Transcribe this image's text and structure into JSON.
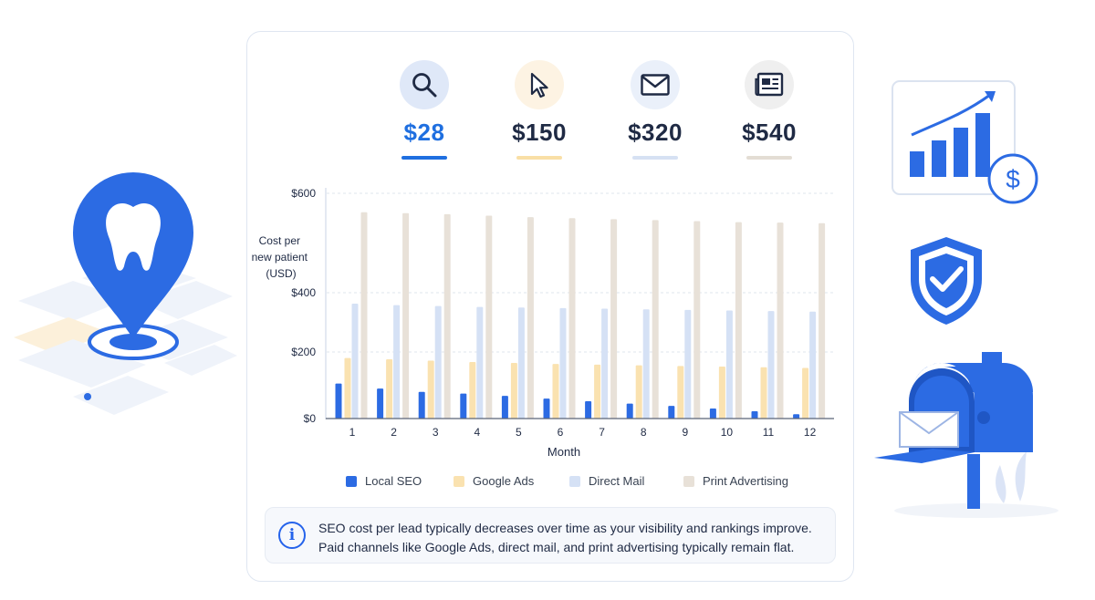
{
  "kpis": [
    {
      "label": "$28",
      "icon": "search-icon",
      "circle_color": "#dfe8f8",
      "value_color": "#1f6fe0",
      "bar_color": "#1f6fe0"
    },
    {
      "label": "$150",
      "icon": "cursor-icon",
      "circle_color": "#fdf3e3",
      "value_color": "#1f2a44",
      "bar_color": "#f9dfa6"
    },
    {
      "label": "$320",
      "icon": "mail-icon",
      "circle_color": "#eaf0fa",
      "value_color": "#1f2a44",
      "bar_color": "#d6e1f3"
    },
    {
      "label": "$540",
      "icon": "newspaper-icon",
      "circle_color": "#efefef",
      "value_color": "#1f2a44",
      "bar_color": "#e3ddd4"
    }
  ],
  "chart_data": {
    "type": "bar",
    "ylabel": "Cost per new patient (USD)",
    "xlabel": "Month",
    "y_tick_labels": [
      "$0",
      "$200",
      "$400",
      "$600"
    ],
    "categories": [
      "1",
      "2",
      "3",
      "4",
      "5",
      "6",
      "7",
      "8",
      "9",
      "10",
      "11",
      "12"
    ],
    "series": [
      {
        "name": "Local SEO",
        "color": "#2c6be3",
        "values": [
          105,
          90,
          80,
          75,
          68,
          60,
          52,
          45,
          38,
          30,
          22,
          13
        ]
      },
      {
        "name": "Google Ads",
        "color": "#fae2b0",
        "values": [
          182,
          178,
          174,
          170,
          167,
          164,
          162,
          160,
          158,
          156,
          154,
          152
        ]
      },
      {
        "name": "Direct Mail",
        "color": "#d5e1f5",
        "values": [
          363,
          358,
          355,
          352,
          350,
          348,
          346,
          344,
          342,
          340,
          338,
          336
        ]
      },
      {
        "name": "Print Advertising",
        "color": "#e8e1d8",
        "values": [
          562,
          560,
          558,
          555,
          552,
          550,
          548,
          546,
          544,
          542,
          541,
          540
        ]
      }
    ],
    "grid": true
  },
  "note": {
    "line1": "SEO cost per lead typically decreases over time as your visibility and rankings improve.",
    "line2": "Paid channels like Google Ads, direct mail, and print advertising typically remain flat."
  }
}
